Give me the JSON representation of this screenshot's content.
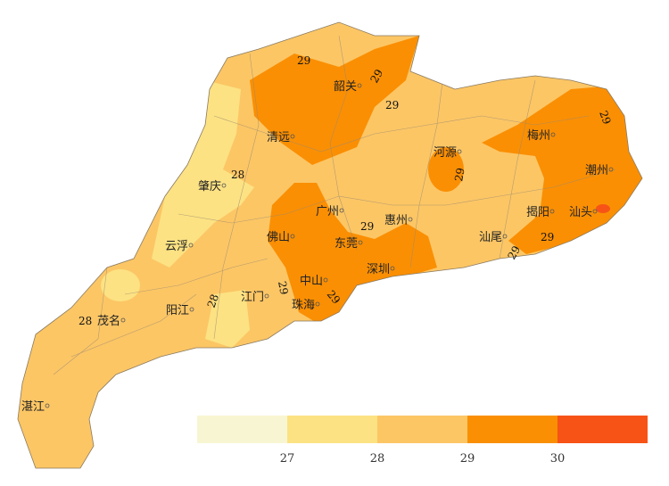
{
  "legend": {
    "colors": [
      "#F8F6D2",
      "#FCE283",
      "#FCC665",
      "#FA8F04",
      "#F75317"
    ],
    "ticks": [
      "27",
      "28",
      "29",
      "30"
    ]
  },
  "cities": [
    {
      "name": "韶关"
    },
    {
      "name": "清远"
    },
    {
      "name": "梅州"
    },
    {
      "name": "河源"
    },
    {
      "name": "潮州"
    },
    {
      "name": "肇庆"
    },
    {
      "name": "广州"
    },
    {
      "name": "惠州"
    },
    {
      "name": "揭阳"
    },
    {
      "name": "汕头"
    },
    {
      "name": "佛山"
    },
    {
      "name": "东莞"
    },
    {
      "name": "汕尾"
    },
    {
      "name": "云浮"
    },
    {
      "name": "深圳"
    },
    {
      "name": "中山"
    },
    {
      "name": "江门"
    },
    {
      "name": "珠海"
    },
    {
      "name": "阳江"
    },
    {
      "name": "茂名"
    },
    {
      "name": "湛江"
    }
  ],
  "contour_labels": [
    "29",
    "29",
    "29",
    "29",
    "28",
    "29",
    "29",
    "29",
    "28",
    "29",
    "29",
    "28",
    "29"
  ]
}
